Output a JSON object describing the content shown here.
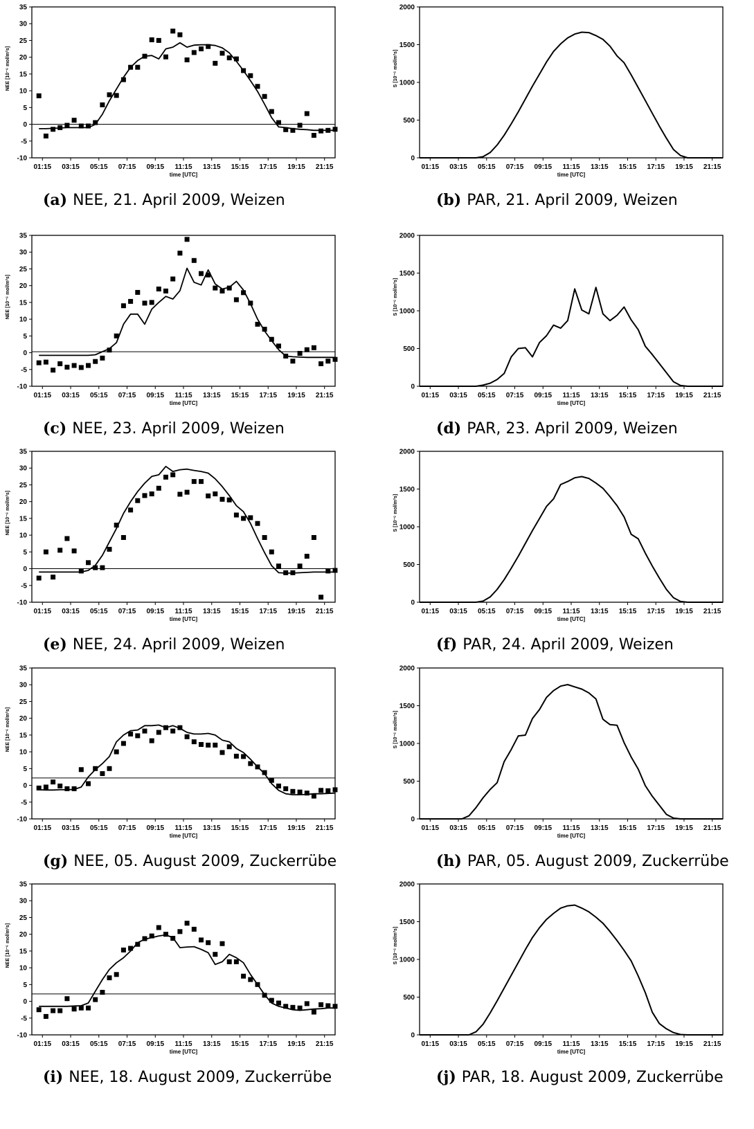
{
  "x_ticks": [
    "01:15",
    "03:15",
    "05:15",
    "07:15",
    "09:15",
    "11:15",
    "13:15",
    "15:15",
    "17:15",
    "19:15",
    "21:15"
  ],
  "x_label": "time [UTC]",
  "nee_ylabel": "NEE [10⁻⁶ mol/m²s]",
  "par_ylabel": "S [10⁻⁶ mol/m²s]",
  "nee_yticks": [
    "-10",
    "-5",
    "0",
    "5",
    "10",
    "15",
    "20",
    "25",
    "30",
    "35"
  ],
  "par_yticks": [
    "0",
    "500",
    "1000",
    "1500",
    "2000"
  ],
  "chart_data": [
    {
      "type": "scatter",
      "id": "a",
      "caption": {
        "label": "(a)",
        "text": "NEE, 21. April 2009, Weizen"
      },
      "xlabel": "time [UTC]",
      "ylabel": "NEE [10⁻⁶ mol/m²s]",
      "xlim": [
        0.5,
        22.0
      ],
      "ylim": [
        -10,
        35
      ],
      "hline": 0,
      "x": [
        1.0,
        1.5,
        2.0,
        2.5,
        3.0,
        3.5,
        4.0,
        4.5,
        5.0,
        5.5,
        6.0,
        6.5,
        7.0,
        7.5,
        8.0,
        8.5,
        9.0,
        9.5,
        10.0,
        10.5,
        11.0,
        11.5,
        12.0,
        12.5,
        13.0,
        13.5,
        14.0,
        14.5,
        15.0,
        15.5,
        16.0,
        16.5,
        17.0,
        17.5,
        18.0,
        18.5,
        19.0,
        19.5,
        20.0,
        20.5,
        21.0,
        21.5,
        22.0
      ],
      "points": [
        8.5,
        -3.5,
        -1.5,
        -1.0,
        -0.3,
        1.2,
        -0.5,
        -0.5,
        0.5,
        5.8,
        8.8,
        8.6,
        13.3,
        17.0,
        17.0,
        20.3,
        25.2,
        25.0,
        20.1,
        27.8,
        26.7,
        19.2,
        21.4,
        22.5,
        23.2,
        18.2,
        21.2,
        19.8,
        19.5,
        16.0,
        14.5,
        11.3,
        8.3,
        3.8,
        0.5,
        -1.6,
        -1.8,
        -0.3,
        3.2,
        -3.3,
        -2.0,
        -1.8,
        -1.5
      ],
      "line": [
        -1.3,
        -1.3,
        -1.2,
        -1.1,
        -1.0,
        -1.0,
        -1.0,
        -1.0,
        0.0,
        3.0,
        7.0,
        10.5,
        14.0,
        17.0,
        19.0,
        20.3,
        20.5,
        19.5,
        22.5,
        23.0,
        24.3,
        23.0,
        23.6,
        23.7,
        23.7,
        23.5,
        22.8,
        21.3,
        18.8,
        16.0,
        13.0,
        9.8,
        6.0,
        2.0,
        -0.8,
        -1.0,
        -1.3,
        -1.5,
        -1.6,
        -1.8,
        -1.8,
        -1.8,
        -1.8
      ]
    },
    {
      "type": "line",
      "id": "b",
      "caption": {
        "label": "(b)",
        "text": "PAR, 21. April 2009, Weizen"
      },
      "xlabel": "time [UTC]",
      "ylabel": "S [10⁻⁶ mol/m²s]",
      "xlim": [
        0.5,
        22.0
      ],
      "ylim": [
        0,
        2000
      ],
      "x": [
        0.5,
        4.5,
        5.0,
        5.5,
        6.0,
        6.5,
        7.0,
        7.5,
        8.0,
        8.5,
        9.0,
        9.5,
        10.0,
        10.5,
        11.0,
        11.5,
        12.0,
        12.5,
        13.0,
        13.5,
        14.0,
        14.5,
        15.0,
        15.5,
        16.0,
        16.5,
        17.0,
        17.5,
        18.0,
        18.5,
        19.0,
        19.5,
        22.0
      ],
      "values": [
        0,
        0,
        15,
        70,
        170,
        300,
        450,
        610,
        780,
        950,
        1110,
        1270,
        1410,
        1510,
        1590,
        1640,
        1665,
        1660,
        1620,
        1570,
        1480,
        1350,
        1260,
        1100,
        930,
        760,
        590,
        420,
        260,
        110,
        30,
        0,
        0
      ]
    },
    {
      "type": "scatter",
      "id": "c",
      "caption": {
        "label": "(c)",
        "text": "NEE, 23. April 2009, Weizen"
      },
      "xlabel": "time [UTC]",
      "ylabel": "NEE [10⁻⁶ mol/m²s]",
      "xlim": [
        0.5,
        22.0
      ],
      "ylim": [
        -10,
        35
      ],
      "hline": 0.3,
      "x": [
        1.0,
        1.5,
        2.0,
        2.5,
        3.0,
        3.5,
        4.0,
        4.5,
        5.0,
        5.5,
        6.0,
        6.5,
        7.0,
        7.5,
        8.0,
        8.5,
        9.0,
        9.5,
        10.0,
        10.5,
        11.0,
        11.5,
        12.0,
        12.5,
        13.0,
        13.5,
        14.0,
        14.5,
        15.0,
        15.5,
        16.0,
        16.5,
        17.0,
        17.5,
        18.0,
        18.5,
        19.0,
        19.5,
        20.0,
        20.5,
        21.0,
        21.5,
        22.0
      ],
      "points": [
        -3.0,
        -2.8,
        -5.2,
        -3.3,
        -4.3,
        -3.8,
        -4.4,
        -3.8,
        -2.6,
        -1.6,
        0.8,
        5.0,
        14.0,
        15.3,
        18.0,
        14.8,
        15.0,
        19.0,
        18.4,
        22.0,
        29.7,
        33.8,
        27.5,
        23.6,
        23.2,
        19.3,
        18.4,
        19.3,
        15.8,
        17.9,
        14.8,
        8.5,
        7.0,
        4.0,
        2.0,
        -1.0,
        -2.5,
        -0.2,
        0.9,
        1.5,
        -3.3,
        -2.5,
        -2.0
      ],
      "line": [
        -0.8,
        -0.8,
        -0.8,
        -0.8,
        -0.8,
        -0.8,
        -0.8,
        -0.8,
        -0.6,
        0.3,
        1.2,
        3.0,
        8.5,
        11.5,
        11.5,
        8.5,
        13.0,
        15.0,
        16.8,
        16.0,
        18.5,
        25.2,
        21.0,
        20.2,
        24.7,
        20.5,
        19.0,
        19.5,
        21.3,
        18.7,
        14.6,
        10.0,
        6.5,
        3.6,
        0.9,
        -1.0,
        -1.2,
        -1.3,
        -1.4,
        -1.4,
        -1.4,
        -1.4,
        -1.4
      ]
    },
    {
      "type": "line",
      "id": "d",
      "caption": {
        "label": "(d)",
        "text": "PAR, 23. April 2009, Weizen"
      },
      "xlabel": "time [UTC]",
      "ylabel": "S [10⁻⁶ mol/m²s]",
      "xlim": [
        0.5,
        22.0
      ],
      "ylim": [
        0,
        2000
      ],
      "x": [
        0.5,
        4.5,
        5.0,
        5.5,
        6.0,
        6.5,
        7.0,
        7.5,
        8.0,
        8.5,
        9.0,
        9.5,
        10.0,
        10.5,
        11.0,
        11.5,
        12.0,
        12.5,
        13.0,
        13.5,
        14.0,
        14.5,
        15.0,
        15.5,
        16.0,
        16.5,
        17.0,
        17.5,
        18.0,
        18.5,
        19.0,
        19.5,
        22.0
      ],
      "values": [
        0,
        0,
        15,
        40,
        90,
        170,
        390,
        500,
        510,
        390,
        580,
        670,
        810,
        770,
        870,
        1290,
        1010,
        960,
        1310,
        960,
        870,
        940,
        1050,
        880,
        750,
        530,
        420,
        300,
        180,
        60,
        10,
        0,
        0
      ]
    },
    {
      "type": "scatter",
      "id": "e",
      "caption": {
        "label": "(e)",
        "text": "NEE, 24. April 2009, Weizen"
      },
      "xlabel": "time [UTC]",
      "ylabel": "NEE [10⁻⁶ mol/m²s]",
      "xlim": [
        0.5,
        22.0
      ],
      "ylim": [
        -10,
        35
      ],
      "hline": 0,
      "x": [
        1.0,
        1.5,
        2.0,
        2.5,
        3.0,
        3.5,
        4.0,
        4.5,
        5.0,
        5.5,
        6.0,
        6.5,
        7.0,
        7.5,
        8.0,
        8.5,
        9.0,
        9.5,
        10.0,
        10.5,
        11.0,
        11.5,
        12.0,
        12.5,
        13.0,
        13.5,
        14.0,
        14.5,
        15.0,
        15.5,
        16.0,
        16.5,
        17.0,
        17.5,
        18.0,
        18.5,
        19.0,
        19.5,
        20.0,
        20.5,
        21.0,
        21.5,
        22.0
      ],
      "points": [
        -2.8,
        5.0,
        -2.5,
        5.5,
        9.0,
        5.3,
        -0.7,
        1.8,
        0.3,
        0.3,
        5.8,
        13.0,
        9.3,
        17.5,
        20.3,
        21.8,
        22.3,
        24.0,
        27.3,
        28.0,
        22.2,
        22.8,
        26.0,
        26.0,
        21.7,
        22.3,
        20.7,
        20.5,
        16.0,
        15.0,
        15.2,
        13.5,
        9.3,
        5.0,
        0.8,
        -1.2,
        -1.2,
        0.8,
        3.7,
        9.3,
        -8.5,
        -0.7,
        -0.5
      ],
      "line": [
        -1.0,
        -1.0,
        -1.0,
        -1.0,
        -1.0,
        -1.0,
        -1.0,
        -0.5,
        1.0,
        4.0,
        8.0,
        12.0,
        16.5,
        20.0,
        23.0,
        25.5,
        27.5,
        28.0,
        30.5,
        29.0,
        29.5,
        29.7,
        29.3,
        29.0,
        28.5,
        26.8,
        24.5,
        21.8,
        18.8,
        17.0,
        13.5,
        9.0,
        4.8,
        0.9,
        -1.2,
        -1.3,
        -1.3,
        -1.2,
        -1.1,
        -1.0,
        -1.0,
        -1.0,
        -1.0
      ]
    },
    {
      "type": "line",
      "id": "f",
      "caption": {
        "label": "(f)",
        "text": "PAR, 24. April 2009, Weizen"
      },
      "xlabel": "time [UTC]",
      "ylabel": "S [10⁻⁶ mol/m²s]",
      "xlim": [
        0.5,
        22.0
      ],
      "ylim": [
        0,
        2000
      ],
      "x": [
        0.5,
        4.5,
        5.0,
        5.5,
        6.0,
        6.5,
        7.0,
        7.5,
        8.0,
        8.5,
        9.0,
        9.5,
        10.0,
        10.5,
        11.0,
        11.5,
        12.0,
        12.5,
        13.0,
        13.5,
        14.0,
        14.5,
        15.0,
        15.5,
        16.0,
        16.5,
        17.0,
        17.5,
        18.0,
        18.5,
        19.0,
        19.5,
        22.0
      ],
      "values": [
        0,
        0,
        15,
        70,
        170,
        300,
        450,
        610,
        780,
        950,
        1110,
        1270,
        1370,
        1560,
        1600,
        1650,
        1665,
        1640,
        1580,
        1510,
        1400,
        1280,
        1130,
        900,
        840,
        650,
        480,
        320,
        170,
        60,
        10,
        0,
        0
      ]
    },
    {
      "type": "scatter",
      "id": "g",
      "caption": {
        "label": "(g)",
        "text": "NEE, 05. August 2009, Zuckerrübe"
      },
      "xlabel": "time [UTC]",
      "ylabel": "NEE [10⁻⁶ mol/m²s]",
      "xlim": [
        0.5,
        22.0
      ],
      "ylim": [
        -10,
        35
      ],
      "hline": 2.2,
      "x": [
        1.0,
        1.5,
        2.0,
        2.5,
        3.0,
        3.5,
        4.0,
        4.5,
        5.0,
        5.5,
        6.0,
        6.5,
        7.0,
        7.5,
        8.0,
        8.5,
        9.0,
        9.5,
        10.0,
        10.5,
        11.0,
        11.5,
        12.0,
        12.5,
        13.0,
        13.5,
        14.0,
        14.5,
        15.0,
        15.5,
        16.0,
        16.5,
        17.0,
        17.5,
        18.0,
        18.5,
        19.0,
        19.5,
        20.0,
        20.5,
        21.0,
        21.5,
        22.0
      ],
      "points": [
        -0.8,
        -0.5,
        1.0,
        -0.2,
        -1.0,
        -1.0,
        4.7,
        0.5,
        5.0,
        3.5,
        5.0,
        10.0,
        12.5,
        15.3,
        14.8,
        16.2,
        13.3,
        15.8,
        17.2,
        16.2,
        17.2,
        14.5,
        13.0,
        12.2,
        12.0,
        12.0,
        9.8,
        11.5,
        8.7,
        8.6,
        6.5,
        5.5,
        3.8,
        1.5,
        -0.2,
        -1.0,
        -1.8,
        -2.0,
        -2.3,
        -3.2,
        -1.5,
        -1.6,
        -1.3
      ],
      "line": [
        -1.3,
        -1.4,
        -1.4,
        -1.3,
        -1.3,
        -1.2,
        -0.5,
        2.5,
        4.7,
        6.5,
        8.6,
        13.0,
        15.0,
        16.3,
        16.5,
        17.8,
        17.8,
        18.0,
        17.2,
        17.8,
        17.0,
        15.8,
        15.3,
        15.3,
        15.5,
        15.0,
        13.5,
        13.0,
        11.0,
        9.8,
        7.8,
        5.5,
        3.5,
        0.5,
        -1.5,
        -2.5,
        -2.8,
        -2.8,
        -2.7,
        -2.5,
        -2.5,
        -2.4,
        -2.3
      ]
    },
    {
      "type": "line",
      "id": "h",
      "caption": {
        "label": "(h)",
        "text": "PAR, 05. August 2009, Zuckerrübe"
      },
      "xlabel": "time [UTC]",
      "ylabel": "S [10⁻⁶ mol/m²s]",
      "xlim": [
        0.5,
        22.0
      ],
      "ylim": [
        0,
        2000
      ],
      "x": [
        0.5,
        3.5,
        4.0,
        4.5,
        5.0,
        5.5,
        6.0,
        6.5,
        7.0,
        7.5,
        8.0,
        8.5,
        9.0,
        9.5,
        10.0,
        10.5,
        11.0,
        11.5,
        12.0,
        12.5,
        13.0,
        13.5,
        14.0,
        14.5,
        15.0,
        15.5,
        16.0,
        16.5,
        17.0,
        17.5,
        18.0,
        18.5,
        19.0,
        22.0
      ],
      "values": [
        0,
        0,
        40,
        150,
        280,
        390,
        480,
        760,
        920,
        1100,
        1110,
        1330,
        1450,
        1610,
        1700,
        1760,
        1780,
        1750,
        1720,
        1670,
        1590,
        1320,
        1250,
        1240,
        1010,
        820,
        660,
        440,
        300,
        180,
        60,
        10,
        0,
        0
      ]
    },
    {
      "type": "scatter",
      "id": "i",
      "caption": {
        "label": "(i)",
        "text": "NEE, 18. August 2009, Zuckerrübe"
      },
      "xlabel": "time [UTC]",
      "ylabel": "NEE [10⁻⁶ mol/m²s]",
      "xlim": [
        0.5,
        22.0
      ],
      "ylim": [
        -10,
        35
      ],
      "hline": 2.2,
      "x": [
        1.0,
        1.5,
        2.0,
        2.5,
        3.0,
        3.5,
        4.0,
        4.5,
        5.0,
        5.5,
        6.0,
        6.5,
        7.0,
        7.5,
        8.0,
        8.5,
        9.0,
        9.5,
        10.0,
        10.5,
        11.0,
        11.5,
        12.0,
        12.5,
        13.0,
        13.5,
        14.0,
        14.5,
        15.0,
        15.5,
        16.0,
        16.5,
        17.0,
        17.5,
        18.0,
        18.5,
        19.0,
        19.5,
        20.0,
        20.5,
        21.0,
        21.5,
        22.0
      ],
      "points": [
        -2.5,
        -4.5,
        -2.8,
        -2.8,
        0.8,
        -2.3,
        -2.0,
        -2.0,
        0.5,
        2.7,
        7.0,
        8.0,
        15.3,
        15.8,
        17.0,
        18.7,
        19.5,
        22.0,
        20.0,
        18.8,
        20.8,
        23.3,
        21.5,
        18.3,
        17.5,
        14.0,
        17.2,
        11.8,
        11.8,
        7.5,
        6.5,
        5.0,
        1.8,
        0.3,
        -0.5,
        -1.5,
        -1.8,
        -2.0,
        -0.7,
        -3.2,
        -1.0,
        -1.3,
        -1.5
      ],
      "line": [
        -1.5,
        -1.5,
        -1.5,
        -1.5,
        -1.5,
        -1.4,
        -1.3,
        -0.5,
        3.0,
        6.5,
        9.5,
        11.5,
        13.0,
        15.0,
        17.5,
        18.5,
        19.0,
        19.5,
        19.8,
        19.0,
        16.0,
        16.2,
        16.3,
        15.5,
        14.5,
        11.0,
        11.8,
        14.0,
        13.0,
        11.5,
        8.0,
        5.0,
        2.0,
        -0.5,
        -1.5,
        -2.0,
        -2.5,
        -2.7,
        -2.5,
        -2.3,
        -2.2,
        -2.0,
        -2.0
      ]
    },
    {
      "type": "line",
      "id": "j",
      "caption": {
        "label": "(j)",
        "text": "PAR, 18. August 2009, Zuckerrübe"
      },
      "xlabel": "time [UTC]",
      "ylabel": "S [10⁻⁶ mol/m²s]",
      "xlim": [
        0.5,
        22.0
      ],
      "ylim": [
        0,
        2000
      ],
      "x": [
        0.5,
        4.0,
        4.5,
        5.0,
        5.5,
        6.0,
        6.5,
        7.0,
        7.5,
        8.0,
        8.5,
        9.0,
        9.5,
        10.0,
        10.5,
        11.0,
        11.5,
        12.0,
        12.5,
        13.0,
        13.5,
        14.0,
        14.5,
        15.0,
        15.5,
        16.0,
        16.5,
        17.0,
        17.5,
        18.0,
        18.5,
        19.0,
        19.5,
        22.0
      ],
      "values": [
        0,
        0,
        40,
        140,
        290,
        450,
        620,
        790,
        960,
        1130,
        1290,
        1420,
        1530,
        1610,
        1680,
        1710,
        1720,
        1680,
        1630,
        1560,
        1480,
        1370,
        1250,
        1120,
        980,
        780,
        560,
        300,
        150,
        80,
        30,
        5,
        0,
        0
      ]
    }
  ]
}
